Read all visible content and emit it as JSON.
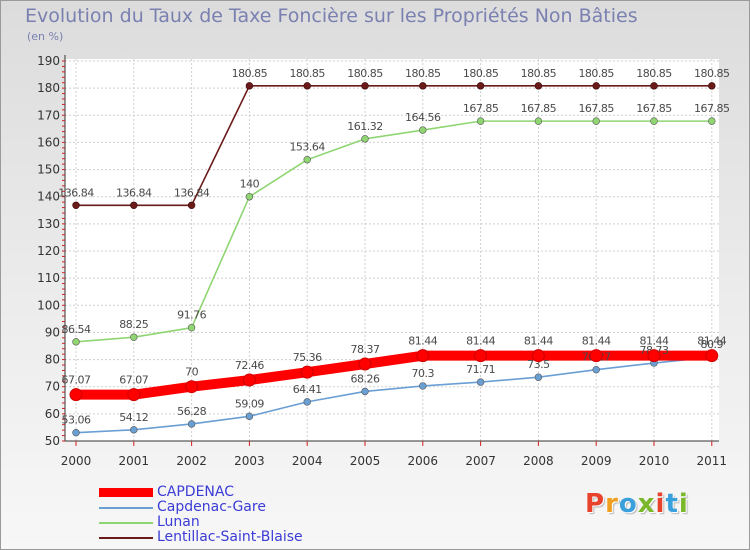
{
  "title": "Evolution du Taux de Taxe Foncière sur les Propriétés Non Bâties",
  "unit_label": "(en %)",
  "logo": {
    "letters": [
      "P",
      "r",
      "o",
      "x",
      "i",
      "t",
      "i"
    ],
    "colors": [
      "#e8412c",
      "#f0a020",
      "#3aa0dc",
      "#7ab82a",
      "#e8412c",
      "#3aa0dc",
      "#7ab82a"
    ]
  },
  "chart_data": {
    "type": "line",
    "title": "Evolution du Taux de Taxe Foncière sur les Propriétés Non Bâties",
    "ylabel": "(en %)",
    "xlabel": "",
    "x": [
      "2000",
      "2001",
      "2002",
      "2003",
      "2004",
      "2005",
      "2006",
      "2007",
      "2008",
      "2009",
      "2010",
      "2011"
    ],
    "ylim": [
      50,
      190
    ],
    "yticks": [
      50,
      60,
      70,
      80,
      90,
      100,
      110,
      120,
      130,
      140,
      150,
      160,
      170,
      180,
      190
    ],
    "grid": true,
    "legend_position": "bottom-left",
    "series": [
      {
        "name": "Lentillac-Saint-Blaise",
        "color": "#6b1a1a",
        "values": [
          136.84,
          136.84,
          136.84,
          180.85,
          180.85,
          180.85,
          180.85,
          180.85,
          180.85,
          180.85,
          180.85,
          180.85
        ],
        "labels": [
          "136.84",
          "136.84",
          "136.84",
          "180.85",
          "180.85",
          "180.85",
          "180.85",
          "180.85",
          "180.85",
          "180.85",
          "180.85",
          "180.85"
        ]
      },
      {
        "name": "Lunan",
        "color": "#8fd672",
        "values": [
          86.54,
          88.25,
          91.76,
          140,
          153.64,
          161.32,
          164.56,
          167.85,
          167.85,
          167.85,
          167.85,
          167.85
        ],
        "labels": [
          "86.54",
          "88.25",
          "91.76",
          "140",
          "153.64",
          "161.32",
          "164.56",
          "167.85",
          "167.85",
          "167.85",
          "167.85",
          "167.85"
        ]
      },
      {
        "name": "Capdenac-Gare",
        "color": "#6a9fd4",
        "values": [
          53.06,
          54.12,
          56.28,
          59.09,
          64.41,
          68.26,
          70.3,
          71.71,
          73.5,
          76.27,
          78.73,
          80.9
        ],
        "labels": [
          "53.06",
          "54.12",
          "56.28",
          "59.09",
          "64.41",
          "68.26",
          "70.3",
          "71.71",
          "73.5",
          "76.27",
          "78.73",
          "80.9"
        ]
      },
      {
        "name": "CAPDENAC",
        "color": "#ff0000",
        "values": [
          67.07,
          67.07,
          70,
          72.46,
          75.36,
          78.37,
          81.44,
          81.44,
          81.44,
          81.44,
          81.44,
          81.44
        ],
        "labels": [
          "67.07",
          "67.07",
          "70",
          "72.46",
          "75.36",
          "78.37",
          "81.44",
          "81.44",
          "81.44",
          "81.44",
          "81.44",
          "81.44"
        ]
      }
    ],
    "legend": [
      {
        "name": "CAPDENAC",
        "color": "#ff0000"
      },
      {
        "name": "Capdenac-Gare",
        "color": "#6a9fd4"
      },
      {
        "name": "Lunan",
        "color": "#8fd672"
      },
      {
        "name": "Lentillac-Saint-Blaise",
        "color": "#6b1a1a"
      }
    ]
  }
}
